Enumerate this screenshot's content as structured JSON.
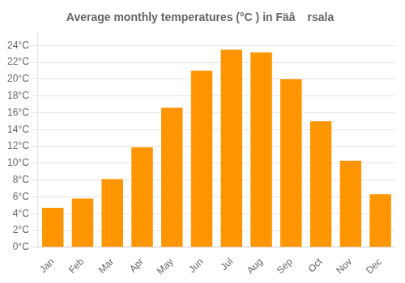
{
  "chart_data": {
    "type": "bar",
    "title": "Average monthly temperatures (°C ) in Fäâ rsala",
    "categories": [
      "Jan",
      "Feb",
      "Mar",
      "Apr",
      "May",
      "Jun",
      "Jul",
      "Aug",
      "Sep",
      "Oct",
      "Nov",
      "Dec"
    ],
    "values": [
      4.7,
      5.8,
      8.1,
      11.9,
      16.6,
      21.0,
      23.5,
      23.2,
      20.0,
      15.0,
      10.3,
      6.3
    ],
    "color": "#FF9500",
    "ylim": [
      0,
      25.5
    ],
    "yticks": [
      {
        "value": 0,
        "label": "0°C"
      },
      {
        "value": 2,
        "label": "2°C"
      },
      {
        "value": 4,
        "label": "4°C"
      },
      {
        "value": 6,
        "label": "6°C"
      },
      {
        "value": 8,
        "label": "8°C"
      },
      {
        "value": 10,
        "label": "10°C"
      },
      {
        "value": 12,
        "label": "12°C"
      },
      {
        "value": 14,
        "label": "14°C"
      },
      {
        "value": 16,
        "label": "16°C"
      },
      {
        "value": 18,
        "label": "18°C"
      },
      {
        "value": 20,
        "label": "20°C"
      },
      {
        "value": 22,
        "label": "22°C"
      },
      {
        "value": 24,
        "label": "24°C"
      }
    ],
    "grid": true
  }
}
